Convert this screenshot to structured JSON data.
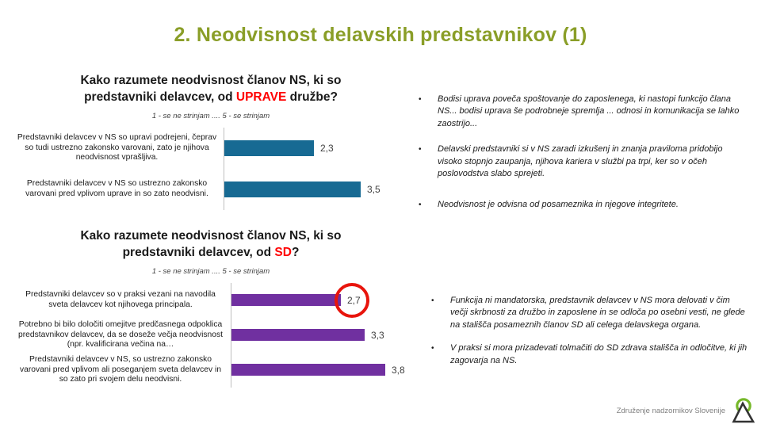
{
  "title": "2. Neodvisnost delavskih predstavnikov (1)",
  "colors": {
    "title_green": "#8A9E28",
    "heading_highlight_red": "#FF0000",
    "chart1_bar_teal": "#176A93",
    "chart2_bar_purple": "#7030A0",
    "annotation_circle_red": "#E8140C",
    "logo_green": "#76B82A",
    "footer_gray": "#808080"
  },
  "chart1": {
    "heading_line1": "Kako razumete neodvisnost članov NS, ki so",
    "heading_line2_pre": "predstavniki delavcev, od ",
    "heading_highlight": "UPRAVE",
    "heading_line2_post": " družbe?",
    "scale_note": "1 - se ne strinjam .... 5 - se strinjam",
    "bars": [
      {
        "label": "Predstavniki delavcev v NS so upravi podrejeni, čeprav so tudi ustrezno zakonsko varovani, zato je njihova neodvisnost vprašljiva.",
        "value": "2,3"
      },
      {
        "label": "Predstavniki delavcev v NS so ustrezno zakonsko varovani pred vplivom uprave in so zato neodvisni.",
        "value": "3,5"
      }
    ]
  },
  "chart2": {
    "heading_line1": "Kako razumete neodvisnost članov NS, ki so",
    "heading_line2_pre": "predstavniki delavcev, od ",
    "heading_highlight": "SD",
    "heading_line2_post": "?",
    "scale_note": "1 - se ne strinjam .... 5 - se strinjam",
    "bars": [
      {
        "label": "Predstavniki delavcev so v praksi vezani na navodila sveta delavcev kot njihovega principala.",
        "value": "2,7"
      },
      {
        "label": "Potrebno bi bilo določiti omejitve predčasnega odpoklica predstavnikov delavcev, da se doseže večja neodvisnost (npr. kvalificirana večina na…",
        "value": "3,3"
      },
      {
        "label": "Predstavniki delavcev v NS, so ustrezno zakonsko varovani pred vplivom ali poseganjem sveta delavcev in so zato pri svojem delu neodvisni.",
        "value": "3,8"
      }
    ]
  },
  "bullets_group1": [
    {
      "text": "Bodisi uprava poveča spoštovanje do zaposlenega, ki nastopi funkcijo člana NS... bodisi uprava še podrobneje spremlja ... odnosi in komunikacija se lahko zaostrijo..."
    },
    {
      "text": "Delavski predstavniki si v NS zaradi izkušenj in znanja praviloma pridobijo visoko stopnjo zaupanja, njihova kariera v službi pa trpi, ker so v očeh poslovodstva slabo sprejeti."
    },
    {
      "text": "Neodvisnost je odvisna od posameznika in njegove integritete."
    }
  ],
  "bullets_group2": [
    {
      "text": "Funkcija ni mandatorska, predstavnik delavcev v NS mora delovati v čim večji skrbnosti za družbo in zaposlene in se odloča po osebni vesti, ne glede na stališča posameznih članov SD ali celega delavskega organa."
    },
    {
      "text": "V praksi si mora prizadevati tolmačiti do SD zdrava stališča in odločitve, ki jih zagovarja na NS."
    }
  ],
  "bullet_marker": "•",
  "footer": {
    "org_name": "Združenje nadzornikov Slovenije"
  },
  "chart_data": [
    {
      "type": "bar",
      "orientation": "horizontal",
      "title": "Kako razumete neodvisnost članov NS, ki so predstavniki delavcev, od UPRAVE družbe?",
      "subtitle": "1 - se ne strinjam .... 5 - se strinjam",
      "categories": [
        "Predstavniki delavcev v NS so upravi podrejeni, čeprav so tudi ustrezno zakonsko varovani, zato je njihova neodvisnost vprašljiva.",
        "Predstavniki delavcev v NS so ustrezno zakonsko varovani pred vplivom uprave in so zato neodvisni."
      ],
      "values": [
        2.3,
        3.5
      ],
      "xlim": [
        0,
        5
      ],
      "bar_color": "#176A93",
      "data_labels": [
        "2,3",
        "3,5"
      ],
      "grid": false,
      "legend": false
    },
    {
      "type": "bar",
      "orientation": "horizontal",
      "title": "Kako razumete neodvisnost članov NS, ki so predstavniki delavcev, od SD?",
      "subtitle": "1 - se ne strinjam .... 5 - se strinjam",
      "categories": [
        "Predstavniki delavcev so v praksi vezani na navodila sveta delavcev kot njihovega principala.",
        "Potrebno bi bilo določiti omejitve predčasnega odpoklica predstavnikov delavcev, da se doseže večja neodvisnost (npr. kvalificirana večina na…",
        "Predstavniki delavcev v NS, so ustrezno zakonsko varovani pred vplivom ali poseganjem sveta delavcev in so zato pri svojem delu neodvisni."
      ],
      "values": [
        2.7,
        3.3,
        3.8
      ],
      "xlim": [
        0,
        5
      ],
      "bar_color": "#7030A0",
      "data_labels": [
        "2,7",
        "3,3",
        "3,8"
      ],
      "annotations": [
        "red circle around value 2,7"
      ],
      "grid": false,
      "legend": false
    }
  ]
}
